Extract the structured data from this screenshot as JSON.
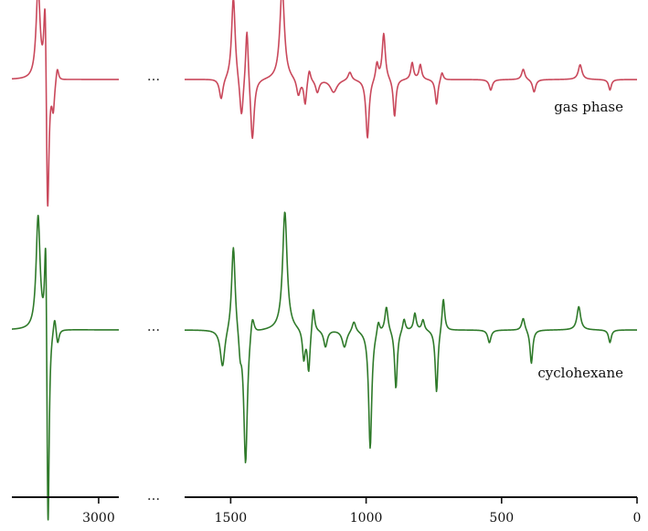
{
  "chart_data": {
    "type": "line",
    "title": "",
    "xlabel": "",
    "ylabel": "",
    "axis_break_symbol": "···",
    "x_segments": [
      {
        "xlim": [
          3430,
          2900
        ],
        "ticks": [
          3000
        ],
        "tick_labels": [
          "3000"
        ]
      },
      {
        "xlim": [
          1670,
          0
        ],
        "ticks": [
          1500,
          1000,
          500,
          0
        ],
        "tick_labels": [
          "1500",
          "1000",
          "500",
          "0"
        ]
      }
    ],
    "ylim": [
      -1.0,
      0.75
    ],
    "series": [
      {
        "name": "gas phase",
        "color": "#c9485b",
        "baseline": 0.0,
        "peaks": [
          {
            "x": 3300,
            "a": 0.22,
            "w": 12
          },
          {
            "x": 3265,
            "a": 0.25,
            "w": 8
          },
          {
            "x": 3253,
            "a": -0.38,
            "w": 8
          },
          {
            "x": 3225,
            "a": -0.07,
            "w": 8
          },
          {
            "x": 3205,
            "a": 0.035,
            "w": 8
          },
          {
            "x": 1535,
            "a": -0.05,
            "w": 8
          },
          {
            "x": 1490,
            "a": 0.2,
            "w": 8
          },
          {
            "x": 1460,
            "a": -0.1,
            "w": 8
          },
          {
            "x": 1440,
            "a": 0.14,
            "w": 6
          },
          {
            "x": 1420,
            "a": -0.15,
            "w": 8
          },
          {
            "x": 1310,
            "a": 0.22,
            "w": 10
          },
          {
            "x": 1250,
            "a": -0.04,
            "w": 8
          },
          {
            "x": 1225,
            "a": -0.06,
            "w": 6
          },
          {
            "x": 1210,
            "a": 0.03,
            "w": 6
          },
          {
            "x": 1180,
            "a": -0.03,
            "w": 8
          },
          {
            "x": 1120,
            "a": -0.03,
            "w": 15
          },
          {
            "x": 1060,
            "a": 0.02,
            "w": 8
          },
          {
            "x": 995,
            "a": -0.14,
            "w": 7
          },
          {
            "x": 960,
            "a": 0.04,
            "w": 6
          },
          {
            "x": 935,
            "a": 0.11,
            "w": 7
          },
          {
            "x": 895,
            "a": -0.09,
            "w": 6
          },
          {
            "x": 830,
            "a": 0.04,
            "w": 6
          },
          {
            "x": 800,
            "a": 0.035,
            "w": 6
          },
          {
            "x": 740,
            "a": -0.06,
            "w": 6
          },
          {
            "x": 720,
            "a": 0.02,
            "w": 6
          },
          {
            "x": 540,
            "a": -0.025,
            "w": 7
          },
          {
            "x": 420,
            "a": 0.025,
            "w": 7
          },
          {
            "x": 380,
            "a": -0.03,
            "w": 7
          },
          {
            "x": 210,
            "a": 0.035,
            "w": 8
          },
          {
            "x": 100,
            "a": -0.025,
            "w": 6
          }
        ]
      },
      {
        "name": "cyclohexane",
        "color": "#2f7a2a",
        "baseline": 0.0,
        "peaks": [
          {
            "x": 3300,
            "a": 0.27,
            "w": 12
          },
          {
            "x": 3262,
            "a": 0.31,
            "w": 7
          },
          {
            "x": 3251,
            "a": -0.55,
            "w": 7
          },
          {
            "x": 3218,
            "a": 0.04,
            "w": 8
          },
          {
            "x": 3203,
            "a": -0.035,
            "w": 8
          },
          {
            "x": 1530,
            "a": -0.09,
            "w": 10
          },
          {
            "x": 1490,
            "a": 0.21,
            "w": 8
          },
          {
            "x": 1465,
            "a": -0.05,
            "w": 6
          },
          {
            "x": 1445,
            "a": -0.32,
            "w": 8
          },
          {
            "x": 1420,
            "a": 0.05,
            "w": 8
          },
          {
            "x": 1300,
            "a": 0.28,
            "w": 10
          },
          {
            "x": 1230,
            "a": -0.07,
            "w": 6
          },
          {
            "x": 1212,
            "a": -0.1,
            "w": 6
          },
          {
            "x": 1195,
            "a": 0.06,
            "w": 6
          },
          {
            "x": 1150,
            "a": -0.04,
            "w": 8
          },
          {
            "x": 1080,
            "a": -0.04,
            "w": 10
          },
          {
            "x": 1045,
            "a": 0.025,
            "w": 8
          },
          {
            "x": 985,
            "a": -0.28,
            "w": 7
          },
          {
            "x": 955,
            "a": 0.03,
            "w": 6
          },
          {
            "x": 925,
            "a": 0.06,
            "w": 7
          },
          {
            "x": 890,
            "a": -0.14,
            "w": 6
          },
          {
            "x": 860,
            "a": 0.03,
            "w": 6
          },
          {
            "x": 820,
            "a": 0.04,
            "w": 6
          },
          {
            "x": 790,
            "a": 0.025,
            "w": 6
          },
          {
            "x": 740,
            "a": -0.15,
            "w": 6
          },
          {
            "x": 715,
            "a": 0.08,
            "w": 6
          },
          {
            "x": 545,
            "a": -0.03,
            "w": 7
          },
          {
            "x": 420,
            "a": 0.03,
            "w": 7
          },
          {
            "x": 390,
            "a": -0.08,
            "w": 6
          },
          {
            "x": 215,
            "a": 0.055,
            "w": 8
          },
          {
            "x": 100,
            "a": -0.03,
            "w": 6
          }
        ]
      }
    ],
    "legend": "labels beside each trace",
    "grid": false
  }
}
